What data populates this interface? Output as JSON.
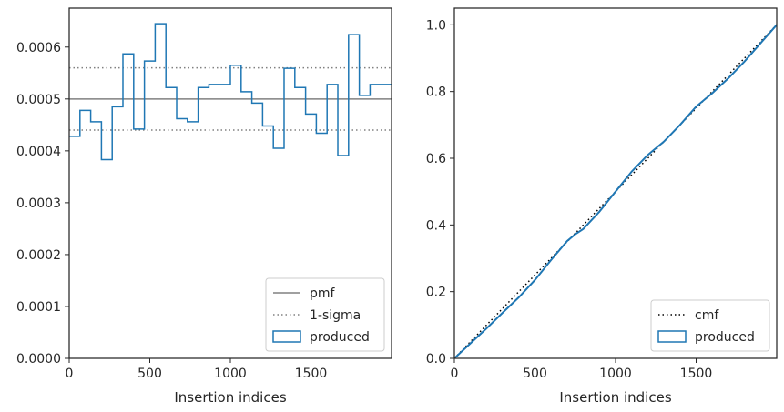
{
  "chart_data": [
    {
      "type": "histogram",
      "xlabel": "Insertion indices",
      "ylabel": "",
      "xlim": [
        0,
        2000
      ],
      "ylim": [
        0,
        0.000675
      ],
      "xticks": [
        0,
        500,
        1000,
        1500
      ],
      "xtick_labels": [
        "0",
        "500",
        "1000",
        "1500"
      ],
      "yticks": [
        0,
        0.0001,
        0.0002,
        0.0003,
        0.0004,
        0.0005,
        0.0006
      ],
      "ytick_labels": [
        "0.0000",
        "0.0001",
        "0.0002",
        "0.0003",
        "0.0004",
        "0.0005",
        "0.0006"
      ],
      "legend_position": "bottom-right",
      "reference_lines": [
        {
          "name": "pmf",
          "y": 0.0005,
          "style": "solid",
          "color": "#808080"
        },
        {
          "name": "1-sigma",
          "y": 0.00056,
          "style": "dotted",
          "color": "#808080"
        },
        {
          "name": "1-sigma-lower",
          "y": 0.00044,
          "style": "dotted",
          "color": "#808080"
        }
      ],
      "legend": [
        {
          "label": "pmf",
          "style": "solid",
          "color": "#808080"
        },
        {
          "label": "1-sigma",
          "style": "dotted",
          "color": "#808080"
        },
        {
          "label": "produced",
          "style": "patch",
          "color": "#1f77b4"
        }
      ],
      "series": [
        {
          "name": "produced",
          "color": "#1f77b4",
          "bin_edges": [
            0,
            66.7,
            133.3,
            200,
            266.7,
            333.3,
            400,
            466.7,
            533.3,
            600,
            666.7,
            733.3,
            800,
            866.7,
            933.3,
            1000,
            1066.7,
            1133.3,
            1200,
            1266.7,
            1333.3,
            1400,
            1466.7,
            1533.3,
            1600,
            1666.7,
            1733.3,
            1800,
            1866.7,
            1933.3,
            2000
          ],
          "values": [
            0.000428,
            0.000478,
            0.000456,
            0.000383,
            0.000485,
            0.000587,
            0.000442,
            0.000573,
            0.000645,
            0.000522,
            0.000462,
            0.000456,
            0.000522,
            0.000528,
            0.000528,
            0.000565,
            0.000514,
            0.000492,
            0.000448,
            0.000405,
            0.000559,
            0.000522,
            0.000471,
            0.000434,
            0.000528,
            0.000391,
            0.000624,
            0.000507,
            0.000528,
            0.000528
          ]
        }
      ]
    },
    {
      "type": "line",
      "xlabel": "Insertion indices",
      "ylabel": "",
      "xlim": [
        0,
        2000
      ],
      "ylim": [
        0,
        1.05
      ],
      "xticks": [
        0,
        500,
        1000,
        1500
      ],
      "xtick_labels": [
        "0",
        "500",
        "1000",
        "1500"
      ],
      "yticks": [
        0,
        0.2,
        0.4,
        0.6,
        0.8,
        1.0
      ],
      "ytick_labels": [
        "0.0",
        "0.2",
        "0.4",
        "0.6",
        "0.8",
        "1.0"
      ],
      "legend_position": "bottom-right",
      "legend": [
        {
          "label": "cmf",
          "style": "dotted",
          "color": "#000000"
        },
        {
          "label": "produced",
          "style": "patch",
          "color": "#1f77b4"
        }
      ],
      "series": [
        {
          "name": "cmf",
          "style": "dotted",
          "color": "#000000",
          "x": [
            0,
            2000
          ],
          "y": [
            0,
            1.0
          ]
        },
        {
          "name": "produced",
          "style": "solid",
          "color": "#1f77b4",
          "x": [
            0,
            100,
            200,
            300,
            400,
            500,
            600,
            700,
            750,
            800,
            900,
            1000,
            1100,
            1200,
            1300,
            1400,
            1500,
            1600,
            1700,
            1800,
            1900,
            2000
          ],
          "y": [
            0,
            0.045,
            0.09,
            0.137,
            0.183,
            0.235,
            0.295,
            0.352,
            0.372,
            0.388,
            0.44,
            0.5,
            0.56,
            0.61,
            0.65,
            0.7,
            0.755,
            0.795,
            0.84,
            0.89,
            0.945,
            1.0
          ]
        }
      ]
    }
  ]
}
